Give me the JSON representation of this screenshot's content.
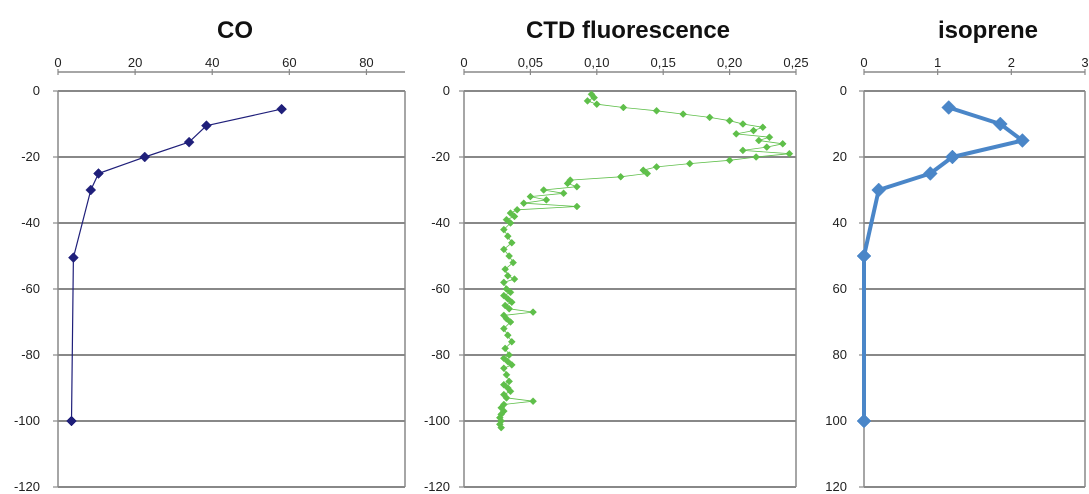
{
  "chart_data": [
    {
      "type": "line",
      "title": "CO",
      "xlabel": "",
      "ylabel": "",
      "xlim": [
        0,
        90
      ],
      "ylim": [
        -120,
        0
      ],
      "x_ticks": [
        0,
        20,
        40,
        60,
        80
      ],
      "x_tick_labels": [
        "0",
        "20",
        "40",
        "60",
        "80"
      ],
      "y_ticks": [
        0,
        -20,
        -40,
        -60,
        -80,
        -100,
        -120
      ],
      "y_tick_labels": [
        "0",
        "-20",
        "-40",
        "-60",
        "-80",
        "-100",
        "-120"
      ],
      "x_axis_position": "top",
      "grid": "horizontal",
      "color": "#1f1f7a",
      "marker": "diamond",
      "series": [
        {
          "x": [
            58,
            38.5,
            34,
            22.5,
            10.5,
            8.5,
            4,
            3.5
          ],
          "y": [
            -5.5,
            -10.5,
            -15.5,
            -20,
            -25,
            -30,
            -50.5,
            -100
          ]
        }
      ]
    },
    {
      "type": "line",
      "title": "CTD fluorescence",
      "xlabel": "",
      "ylabel": "",
      "xlim": [
        0,
        0.25
      ],
      "ylim": [
        -120,
        0
      ],
      "x_ticks": [
        0,
        0.05,
        0.1,
        0.15,
        0.2,
        0.25
      ],
      "x_tick_labels": [
        "0",
        "0,05",
        "0,10",
        "0,15",
        "0,20",
        "0,25"
      ],
      "y_ticks": [
        0,
        -20,
        -40,
        -60,
        -80,
        -100,
        -120
      ],
      "y_tick_labels": [
        "0",
        "-20",
        "-40",
        "-60",
        "-80",
        "-100",
        "-120"
      ],
      "x_axis_position": "top",
      "grid": "horizontal",
      "color": "#5fbf4a",
      "marker": "diamond",
      "series": [
        {
          "x": [
            0.096,
            0.098,
            0.093,
            0.1,
            0.12,
            0.145,
            0.165,
            0.185,
            0.2,
            0.21,
            0.225,
            0.218,
            0.205,
            0.23,
            0.222,
            0.24,
            0.228,
            0.21,
            0.245,
            0.22,
            0.2,
            0.17,
            0.145,
            0.135,
            0.138,
            0.118,
            0.08,
            0.078,
            0.085,
            0.06,
            0.075,
            0.05,
            0.062,
            0.045,
            0.085,
            0.04,
            0.035,
            0.038,
            0.032,
            0.035,
            0.03,
            0.033,
            0.036,
            0.03,
            0.034,
            0.037,
            0.031,
            0.033,
            0.038,
            0.03,
            0.032,
            0.035,
            0.03,
            0.033,
            0.036,
            0.031,
            0.034,
            0.052,
            0.03,
            0.032,
            0.035,
            0.03,
            0.033,
            0.036,
            0.031,
            0.034,
            0.03,
            0.033,
            0.036,
            0.03,
            0.032,
            0.034,
            0.03,
            0.033,
            0.035,
            0.03,
            0.032,
            0.052,
            0.03,
            0.028,
            0.03,
            0.028,
            0.027,
            0.028,
            0.027,
            0.028
          ],
          "y": [
            -1,
            -2,
            -3,
            -4,
            -5,
            -6,
            -7,
            -8,
            -9,
            -10,
            -11,
            -12,
            -13,
            -14,
            -15,
            -16,
            -17,
            -18,
            -19,
            -20,
            -21,
            -22,
            -23,
            -24,
            -25,
            -26,
            -27,
            -28,
            -29,
            -30,
            -31,
            -32,
            -33,
            -34,
            -35,
            -36,
            -37,
            -38,
            -39,
            -40,
            -42,
            -44,
            -46,
            -48,
            -50,
            -52,
            -54,
            -56,
            -57,
            -58,
            -60,
            -61,
            -62,
            -63,
            -64,
            -65,
            -66,
            -67,
            -68,
            -69,
            -70,
            -72,
            -74,
            -76,
            -78,
            -80,
            -81,
            -82,
            -83,
            -84,
            -86,
            -88,
            -89,
            -90,
            -91,
            -92,
            -93,
            -94,
            -95,
            -96,
            -97,
            -98,
            -99,
            -100,
            -101,
            -102
          ]
        }
      ]
    },
    {
      "type": "line",
      "title": "isoprene",
      "xlabel": "",
      "ylabel": "",
      "xlim": [
        0,
        3
      ],
      "ylim": [
        120,
        0
      ],
      "x_ticks": [
        0,
        1,
        2,
        3
      ],
      "x_tick_labels": [
        "0",
        "1",
        "2",
        "3"
      ],
      "y_ticks": [
        0,
        20,
        40,
        60,
        80,
        100,
        120
      ],
      "y_tick_labels": [
        "0",
        "20",
        "40",
        "60",
        "80",
        "100",
        "120"
      ],
      "x_axis_position": "top",
      "grid": "horizontal",
      "color": "#4a86c8",
      "marker": "diamond",
      "series": [
        {
          "x": [
            1.15,
            1.85,
            2.15,
            1.2,
            0.9,
            0.2,
            0,
            0
          ],
          "y": [
            5,
            10,
            15,
            20,
            25,
            30,
            50,
            100
          ]
        }
      ]
    }
  ]
}
